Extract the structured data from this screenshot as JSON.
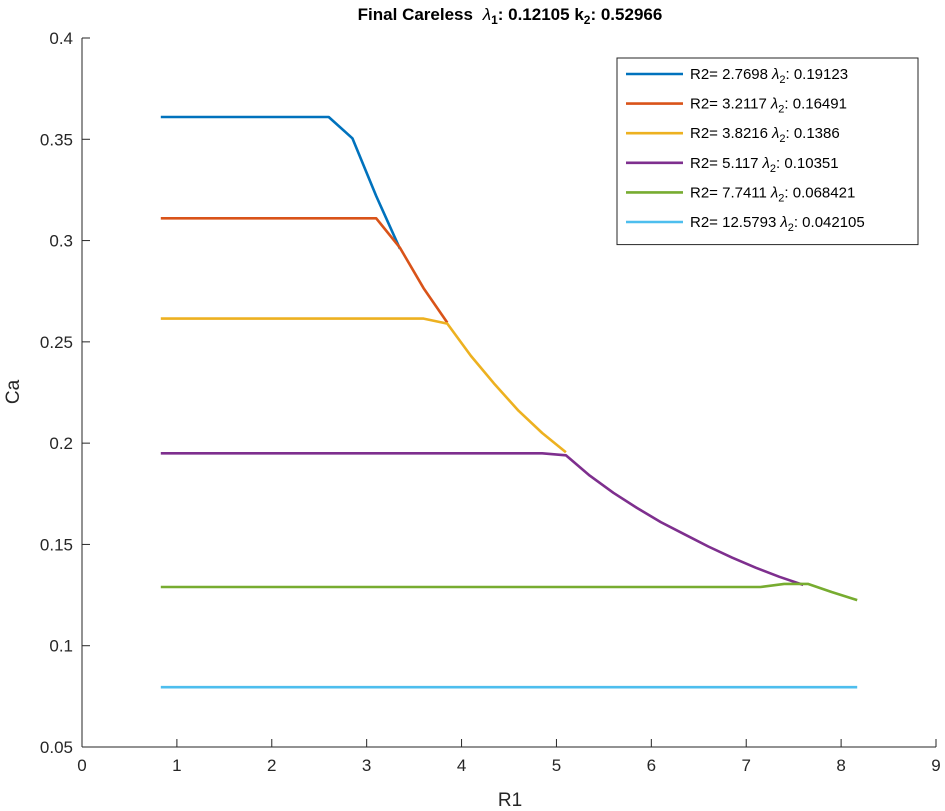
{
  "chart_data": {
    "type": "line",
    "title": "Final Careless",
    "title_parts": {
      "lambda_label": "λ",
      "lambda_sub": "1",
      "lambda_value": ": 0.12105",
      "k_label": " k",
      "k_sub": "2",
      "k_value": ": 0.52966"
    },
    "xlabel": "R1",
    "ylabel": "Ca",
    "xlim": [
      0,
      9
    ],
    "ylim": [
      0.05,
      0.4
    ],
    "xticks": [
      "0",
      "1",
      "2",
      "3",
      "4",
      "5",
      "6",
      "7",
      "8",
      "9"
    ],
    "yticks": [
      "0.05",
      "0.1",
      "0.15",
      "0.2",
      "0.25",
      "0.3",
      "0.35",
      "0.4"
    ],
    "grid": false,
    "legend_position": "top-right",
    "series": [
      {
        "name": "R2= 2.7698",
        "lambda_value": ": 0.19123",
        "color": "#0072BD",
        "points": [
          [
            0.83,
            0.361
          ],
          [
            2.6,
            0.361
          ],
          [
            2.85,
            0.3505
          ],
          [
            3.1,
            0.322
          ],
          [
            3.35,
            0.296
          ]
        ]
      },
      {
        "name": "R2= 3.2117",
        "lambda_value": ": 0.16491",
        "color": "#D95319",
        "points": [
          [
            0.83,
            0.311
          ],
          [
            3.1,
            0.311
          ],
          [
            3.35,
            0.2965
          ],
          [
            3.6,
            0.2765
          ],
          [
            3.85,
            0.2595
          ]
        ]
      },
      {
        "name": "R2= 3.8216",
        "lambda_value": ": 0.1386",
        "color": "#EDB120",
        "points": [
          [
            0.83,
            0.2615
          ],
          [
            3.6,
            0.2615
          ],
          [
            3.85,
            0.259
          ],
          [
            4.1,
            0.243
          ],
          [
            4.35,
            0.229
          ],
          [
            4.6,
            0.216
          ],
          [
            4.85,
            0.205
          ],
          [
            5.1,
            0.1955
          ]
        ]
      },
      {
        "name": "R2= 5.117",
        "lambda_value": ": 0.10351",
        "color": "#7E2F8E",
        "points": [
          [
            0.83,
            0.195
          ],
          [
            4.85,
            0.195
          ],
          [
            5.1,
            0.194
          ],
          [
            5.35,
            0.184
          ],
          [
            5.6,
            0.1755
          ],
          [
            5.85,
            0.168
          ],
          [
            6.1,
            0.161
          ],
          [
            6.35,
            0.155
          ],
          [
            6.6,
            0.149
          ],
          [
            6.85,
            0.1435
          ],
          [
            7.1,
            0.1385
          ],
          [
            7.35,
            0.134
          ],
          [
            7.6,
            0.13
          ]
        ]
      },
      {
        "name": "R2= 7.7411",
        "lambda_value": ": 0.068421",
        "color": "#77AC30",
        "points": [
          [
            0.83,
            0.129
          ],
          [
            7.15,
            0.129
          ],
          [
            7.4,
            0.1305
          ],
          [
            7.65,
            0.1305
          ],
          [
            7.9,
            0.1265
          ],
          [
            8.17,
            0.1225
          ]
        ]
      },
      {
        "name": "R2= 12.5793",
        "lambda_value": ": 0.042105",
        "color": "#4DBEEE",
        "points": [
          [
            0.83,
            0.0795
          ],
          [
            8.17,
            0.0795
          ]
        ]
      }
    ]
  }
}
